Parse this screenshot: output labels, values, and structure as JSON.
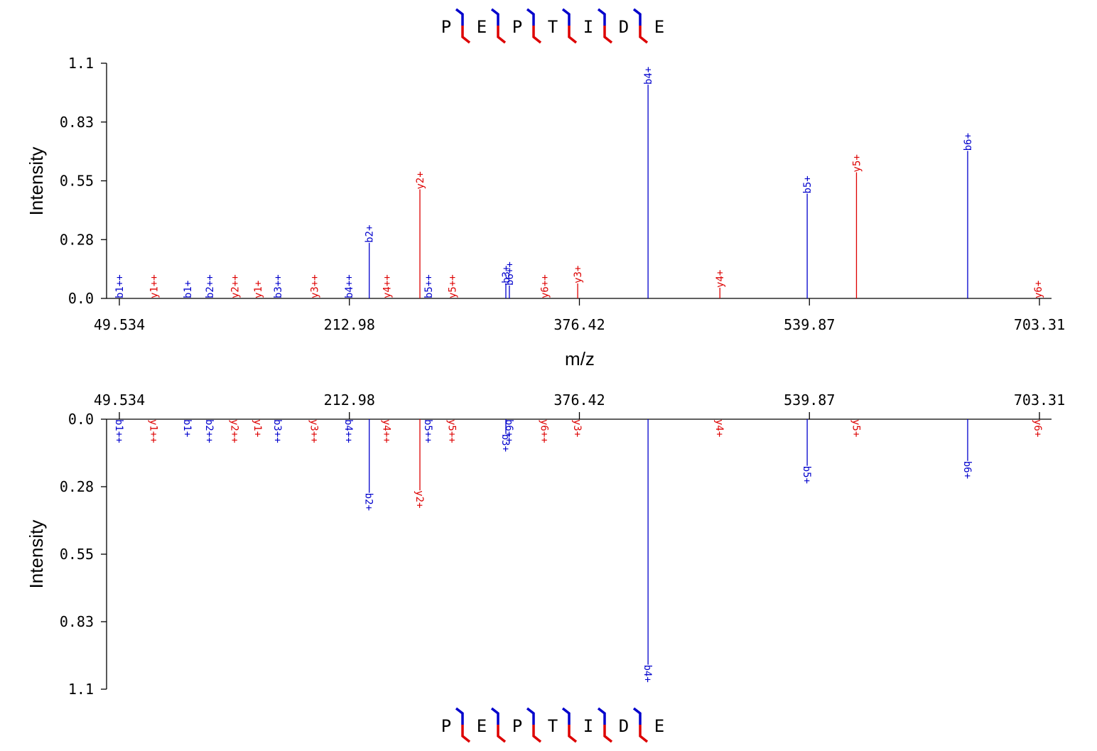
{
  "peptide": [
    "P",
    "E",
    "P",
    "T",
    "I",
    "D",
    "E"
  ],
  "colors": {
    "b": "#0000cc",
    "y": "#dd0000"
  },
  "chart_data": [
    {
      "type": "bar",
      "panel": "top",
      "xlabel": "m/z",
      "ylabel": "Intensity",
      "xlim": [
        49.534,
        703.31
      ],
      "ylim": [
        0.0,
        1.1
      ],
      "x_ticks": [
        "49.534",
        "212.98",
        "376.42",
        "539.87",
        "703.31"
      ],
      "y_ticks": [
        "0.0",
        "0.28",
        "0.55",
        "0.83",
        "1.1"
      ],
      "peaks": [
        {
          "label": "b1++",
          "ion": "b",
          "mz": 49.534,
          "intensity": 0.0
        },
        {
          "label": "y1++",
          "ion": "y",
          "mz": 74.0,
          "intensity": 0.0
        },
        {
          "label": "b1+",
          "ion": "b",
          "mz": 98.06,
          "intensity": 0.0
        },
        {
          "label": "b2++",
          "ion": "b",
          "mz": 113.55,
          "intensity": 0.0
        },
        {
          "label": "y2++",
          "ion": "y",
          "mz": 131.55,
          "intensity": 0.0
        },
        {
          "label": "y1+",
          "ion": "y",
          "mz": 148.06,
          "intensity": 0.0
        },
        {
          "label": "b3++",
          "ion": "b",
          "mz": 162.08,
          "intensity": 0.0
        },
        {
          "label": "y3++",
          "ion": "y",
          "mz": 188.1,
          "intensity": 0.0
        },
        {
          "label": "b4++",
          "ion": "b",
          "mz": 212.6,
          "intensity": 0.0
        },
        {
          "label": "b2+",
          "ion": "b",
          "mz": 227.1,
          "intensity": 0.26
        },
        {
          "label": "y4++",
          "ion": "y",
          "mz": 239.6,
          "intensity": 0.0
        },
        {
          "label": "y2+",
          "ion": "y",
          "mz": 263.09,
          "intensity": 0.51
        },
        {
          "label": "b5++",
          "ion": "b",
          "mz": 269.14,
          "intensity": 0.0
        },
        {
          "label": "y5++",
          "ion": "y",
          "mz": 286.14,
          "intensity": 0.0
        },
        {
          "label": "b3+",
          "ion": "b",
          "mz": 324.16,
          "intensity": 0.07
        },
        {
          "label": "b6++",
          "ion": "b",
          "mz": 326.65,
          "intensity": 0.06
        },
        {
          "label": "y6++",
          "ion": "y",
          "mz": 351.66,
          "intensity": 0.0
        },
        {
          "label": "y3+",
          "ion": "y",
          "mz": 375.2,
          "intensity": 0.07
        },
        {
          "label": "b4+",
          "ion": "b",
          "mz": 425.2,
          "intensity": 1.0
        },
        {
          "label": "y4+",
          "ion": "y",
          "mz": 476.24,
          "intensity": 0.05
        },
        {
          "label": "b5+",
          "ion": "b",
          "mz": 538.28,
          "intensity": 0.49
        },
        {
          "label": "y5+",
          "ion": "y",
          "mz": 573.3,
          "intensity": 0.59
        },
        {
          "label": "b6+",
          "ion": "b",
          "mz": 652.3,
          "intensity": 0.69
        },
        {
          "label": "y6+",
          "ion": "y",
          "mz": 702.34,
          "intensity": 0.0
        }
      ]
    },
    {
      "type": "bar",
      "panel": "bottom",
      "xlabel": "",
      "ylabel": "Intensity",
      "xlim": [
        49.534,
        703.31
      ],
      "ylim": [
        0.0,
        1.1
      ],
      "x_ticks": [
        "49.534",
        "212.98",
        "376.42",
        "539.87",
        "703.31"
      ],
      "y_ticks": [
        "0.0",
        "0.28",
        "0.55",
        "0.83",
        "1.1"
      ],
      "peaks": [
        {
          "label": "b1++",
          "ion": "b",
          "mz": 49.534,
          "intensity": 0.0
        },
        {
          "label": "y1++",
          "ion": "y",
          "mz": 74.0,
          "intensity": 0.0
        },
        {
          "label": "b1+",
          "ion": "b",
          "mz": 98.06,
          "intensity": 0.0
        },
        {
          "label": "b2++",
          "ion": "b",
          "mz": 113.55,
          "intensity": 0.0
        },
        {
          "label": "y2++",
          "ion": "y",
          "mz": 131.55,
          "intensity": 0.0
        },
        {
          "label": "y1+",
          "ion": "y",
          "mz": 148.06,
          "intensity": 0.0
        },
        {
          "label": "b3++",
          "ion": "b",
          "mz": 162.08,
          "intensity": 0.0
        },
        {
          "label": "y3++",
          "ion": "y",
          "mz": 188.1,
          "intensity": 0.0
        },
        {
          "label": "b4++",
          "ion": "b",
          "mz": 212.6,
          "intensity": 0.0
        },
        {
          "label": "b2+",
          "ion": "b",
          "mz": 227.1,
          "intensity": 0.3
        },
        {
          "label": "y4++",
          "ion": "y",
          "mz": 239.6,
          "intensity": 0.0
        },
        {
          "label": "y2+",
          "ion": "y",
          "mz": 263.09,
          "intensity": 0.29
        },
        {
          "label": "b5++",
          "ion": "b",
          "mz": 269.14,
          "intensity": 0.0
        },
        {
          "label": "y5++",
          "ion": "y",
          "mz": 286.14,
          "intensity": 0.0
        },
        {
          "label": "b3+",
          "ion": "b",
          "mz": 324.16,
          "intensity": 0.06
        },
        {
          "label": "b6++",
          "ion": "b",
          "mz": 326.65,
          "intensity": 0.0
        },
        {
          "label": "y6++",
          "ion": "y",
          "mz": 351.66,
          "intensity": 0.0
        },
        {
          "label": "y3+",
          "ion": "y",
          "mz": 375.2,
          "intensity": 0.0
        },
        {
          "label": "b4+",
          "ion": "b",
          "mz": 425.2,
          "intensity": 1.0
        },
        {
          "label": "y4+",
          "ion": "y",
          "mz": 476.24,
          "intensity": 0.0
        },
        {
          "label": "b5+",
          "ion": "b",
          "mz": 538.28,
          "intensity": 0.19
        },
        {
          "label": "y5+",
          "ion": "y",
          "mz": 573.3,
          "intensity": 0.0
        },
        {
          "label": "b6+",
          "ion": "b",
          "mz": 652.3,
          "intensity": 0.17
        },
        {
          "label": "y6+",
          "ion": "y",
          "mz": 702.34,
          "intensity": 0.0
        }
      ]
    }
  ]
}
